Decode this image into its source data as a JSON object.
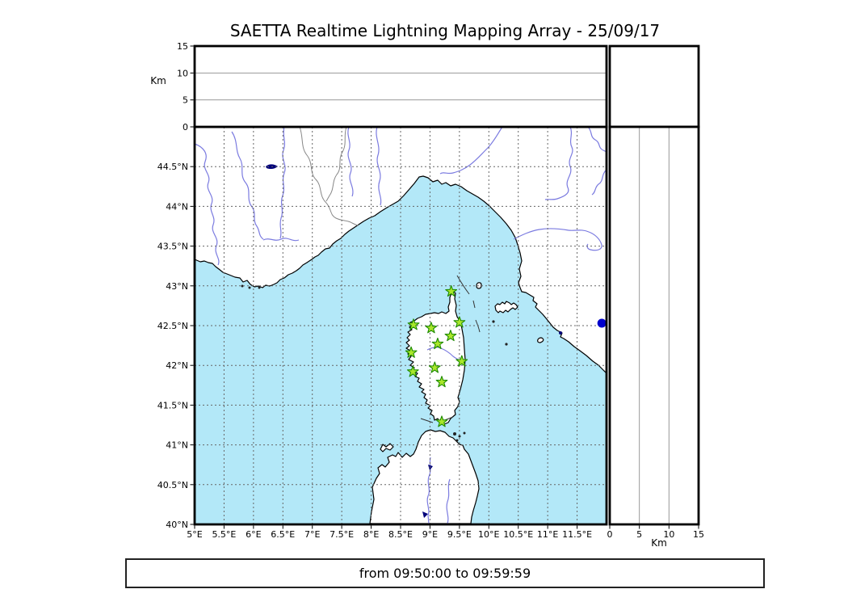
{
  "title": "SAETTA Realtime Lightning Mapping Array - 25/09/17",
  "footer": {
    "time_range": "from 09:50:00 to 09:59:59"
  },
  "colors": {
    "sea": "#b3e8f8",
    "land": "#ffffff",
    "coast": "#000000",
    "river": "#7b7be0",
    "grid_dash": "#666666",
    "panel_grid": "#999999",
    "frame": "#000000",
    "station_fill": "#a9e62b",
    "station_stroke": "#1d8a00",
    "detection_dot": "#0000cc",
    "lake": "#00007a",
    "border_line": "#888888"
  },
  "map": {
    "lon_axis": {
      "min": 5,
      "max": 12,
      "tick_values": [
        5,
        5.5,
        6,
        6.5,
        7,
        7.5,
        8,
        8.5,
        9,
        9.5,
        10,
        10.5,
        11,
        11.5
      ],
      "tick_labels": [
        "5°E",
        "5.5°E",
        "6°E",
        "6.5°E",
        "7°E",
        "7.5°E",
        "8°E",
        "8.5°E",
        "9°E",
        "9.5°E",
        "10°E",
        "10.5°E",
        "11°E",
        "11.5°E"
      ]
    },
    "lat_axis": {
      "min": 40,
      "max": 45,
      "tick_values": [
        44.5,
        44,
        43.5,
        43,
        42.5,
        42,
        41.5,
        41,
        40.5,
        40
      ],
      "tick_labels": [
        "44.5°N",
        "44°N",
        "43.5°N",
        "43°N",
        "42.5°N",
        "42°N",
        "41.5°N",
        "41°N",
        "40.5°N",
        "40°N"
      ]
    },
    "stations": [
      {
        "lon": 9.36,
        "lat": 42.93
      },
      {
        "lon": 8.72,
        "lat": 42.51
      },
      {
        "lon": 9.02,
        "lat": 42.47
      },
      {
        "lon": 9.5,
        "lat": 42.54
      },
      {
        "lon": 9.35,
        "lat": 42.37
      },
      {
        "lon": 9.13,
        "lat": 42.27
      },
      {
        "lon": 8.68,
        "lat": 42.16
      },
      {
        "lon": 9.54,
        "lat": 42.05
      },
      {
        "lon": 8.71,
        "lat": 41.92
      },
      {
        "lon": 9.08,
        "lat": 41.97
      },
      {
        "lon": 9.2,
        "lat": 41.79
      },
      {
        "lon": 9.2,
        "lat": 41.29
      }
    ],
    "detections": [
      {
        "lon": 11.92,
        "lat": 42.53
      }
    ]
  },
  "altitude_panels": {
    "unit_label": "Km",
    "axis": {
      "min": 0,
      "max": 15,
      "tick_values": [
        0,
        5,
        10,
        15
      ],
      "tick_labels": [
        "0",
        "5",
        "10",
        "15"
      ],
      "gridlines": [
        5,
        10
      ]
    }
  }
}
